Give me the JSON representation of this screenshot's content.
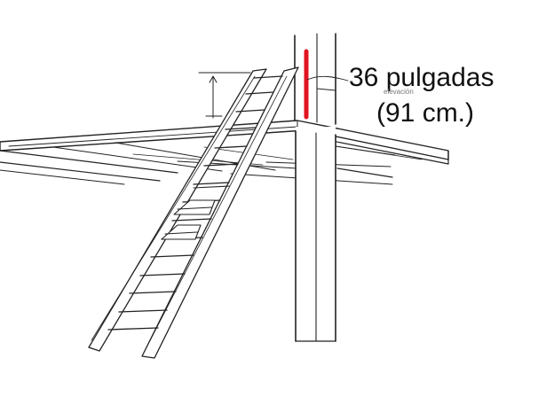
{
  "labels": {
    "height_label": "36 pulgadas",
    "metric_label": "(91 cm.)",
    "tiny_caption": "elevación"
  },
  "colors": {
    "line": "#222222",
    "accent": "#e0141e"
  }
}
